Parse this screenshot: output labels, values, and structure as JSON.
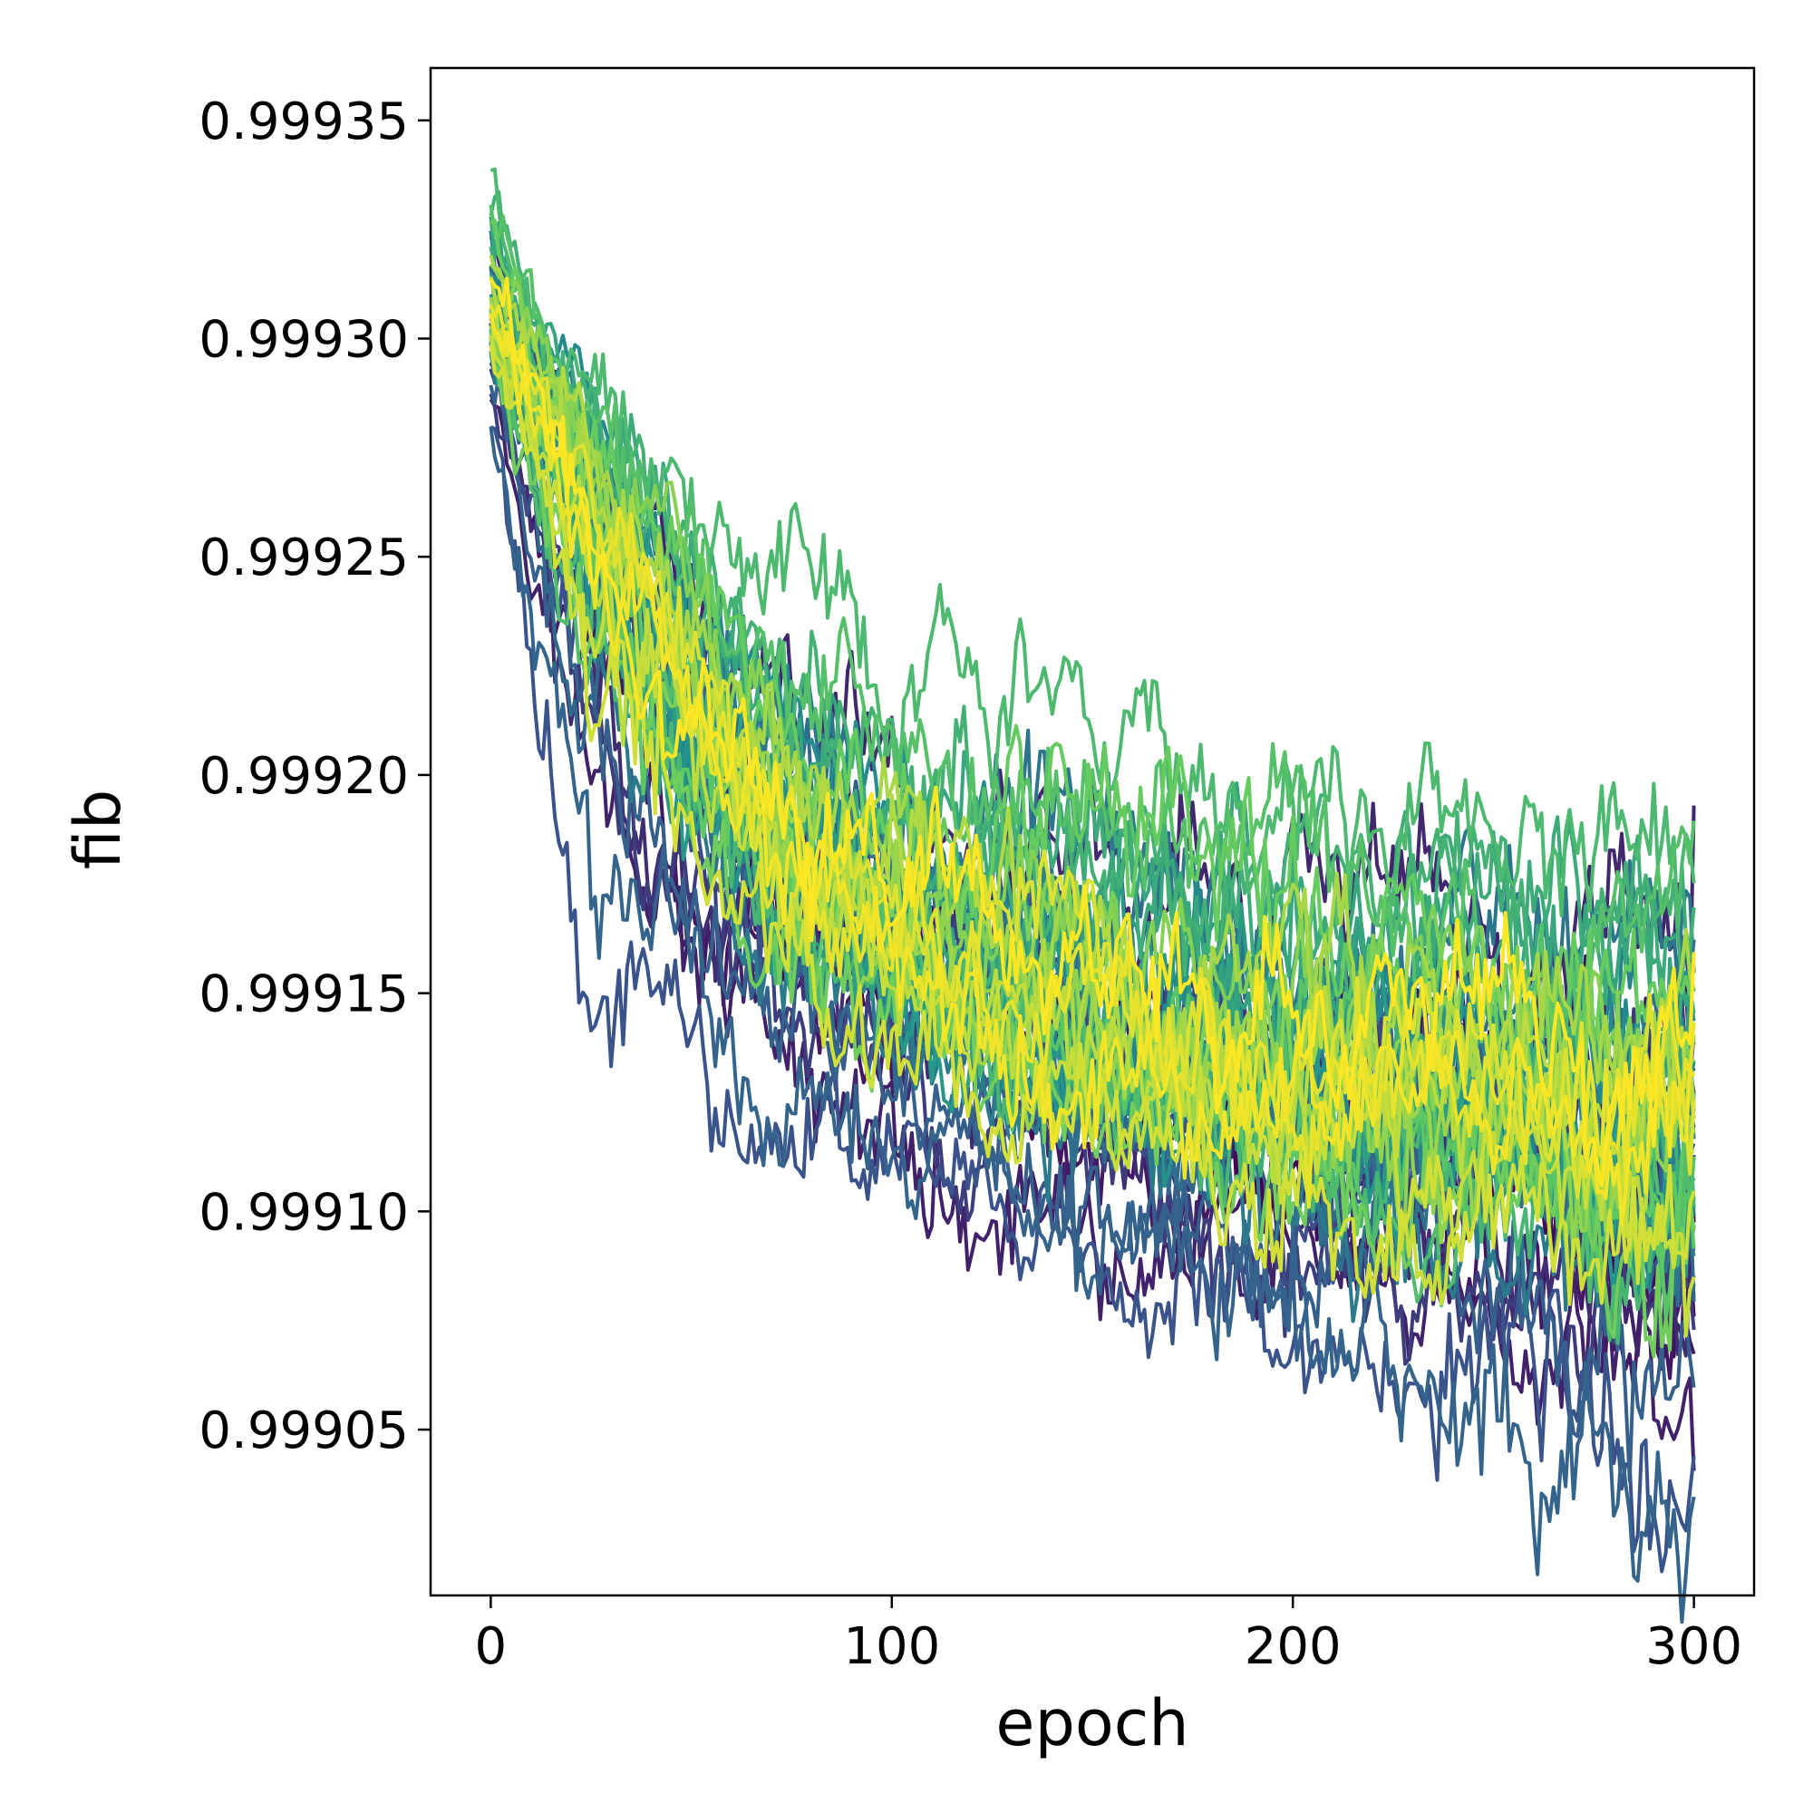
{
  "chart_data": {
    "type": "line",
    "title": "",
    "xlabel": "epoch",
    "ylabel": "fib",
    "xlim": [
      -15,
      315
    ],
    "ylim": [
      0.999012,
      0.999362
    ],
    "xticks": [
      0,
      100,
      200,
      300
    ],
    "xtick_labels": [
      "0",
      "100",
      "200",
      "300"
    ],
    "yticks": [
      0.99905,
      0.9991,
      0.99915,
      0.9992,
      0.99925,
      0.9993,
      0.99935
    ],
    "ytick_labels": [
      "0.99905",
      "0.99910",
      "0.99915",
      "0.99920",
      "0.99925",
      "0.99930",
      "0.99935"
    ],
    "grid": false,
    "legend": "none",
    "colormap": "viridis",
    "colormap_stops": [
      "#440154",
      "#3b528b",
      "#21918c",
      "#5ec962",
      "#fde725"
    ],
    "n_series": 60,
    "epochs": [
      0,
      300
    ],
    "envelope": {
      "epoch": [
        0,
        10,
        25,
        50,
        75,
        100,
        125,
        150,
        175,
        200,
        225,
        250,
        275,
        300
      ],
      "upper": [
        0.999346,
        0.99932,
        0.9993,
        0.99927,
        0.999245,
        0.999225,
        0.99922,
        0.999222,
        0.999212,
        0.999212,
        0.9992,
        0.999198,
        0.999195,
        0.999197
      ],
      "median": [
        0.999305,
        0.999285,
        0.99926,
        0.999215,
        0.99918,
        0.999163,
        0.99915,
        0.99914,
        0.999135,
        0.999127,
        0.999125,
        0.999123,
        0.99912,
        0.999118
      ],
      "lower": [
        0.999279,
        0.999236,
        0.99917,
        0.999145,
        0.999115,
        0.99911,
        0.999095,
        0.999085,
        0.999075,
        0.999068,
        0.99906,
        0.999055,
        0.99904,
        0.99903
      ]
    }
  }
}
